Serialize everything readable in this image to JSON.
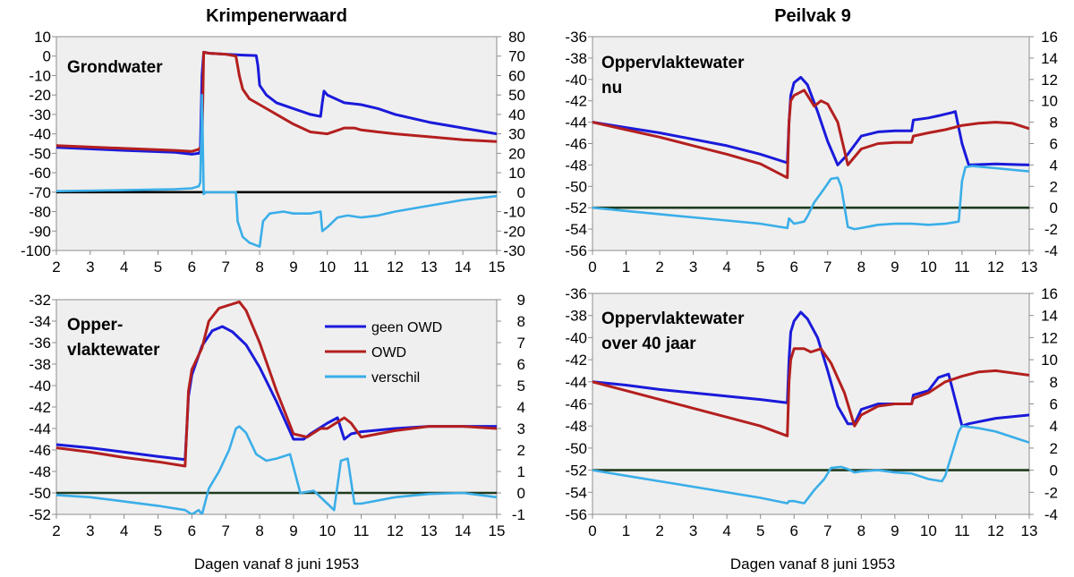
{
  "columns": [
    {
      "title": "Krimpenerwaard"
    },
    {
      "title": "Peilvak 9"
    }
  ],
  "xlabel": "Dagen vanaf 8 juni 1953",
  "legend": [
    "geen OWD",
    "OWD",
    "verschil"
  ],
  "colors": {
    "geen_owd": "#1a1adb",
    "owd": "#b41f1f",
    "verschil": "#3aaee8",
    "zero_line_dark": "#000000",
    "zero_line_green": "#1f3b1f",
    "plot_bg": "#efefef"
  },
  "chart_data": [
    {
      "type": "line",
      "label": "Grondwater",
      "xlim": [
        2,
        15
      ],
      "xticks": [
        2,
        3,
        4,
        5,
        6,
        7,
        8,
        9,
        10,
        11,
        12,
        13,
        14,
        15
      ],
      "ylim": [
        -100,
        10
      ],
      "yticks": [
        -100,
        -90,
        -80,
        -70,
        -60,
        -50,
        -40,
        -30,
        -20,
        -10,
        0,
        10
      ],
      "y2lim": [
        -30,
        80
      ],
      "y2ticks": [
        -30,
        -20,
        -10,
        0,
        10,
        20,
        30,
        40,
        50,
        60,
        70,
        80
      ],
      "grid": false,
      "zero_line_y2": 0,
      "zero_color": "zero_line_dark",
      "series": [
        {
          "name": "geen OWD",
          "axis": "left",
          "x": [
            2,
            4,
            5.5,
            6.0,
            6.2,
            6.25,
            6.3,
            6.35,
            6.5,
            7,
            7.5,
            7.9,
            7.95,
            8.0,
            8.2,
            8.5,
            9,
            9.5,
            9.8,
            9.85,
            9.9,
            10,
            10.5,
            11,
            11.5,
            12,
            13,
            14,
            15
          ],
          "y": [
            -47,
            -48.5,
            -49.5,
            -50.5,
            -50,
            -49,
            -10,
            2,
            1.5,
            1,
            0.5,
            0.3,
            -5,
            -15,
            -20,
            -24,
            -27,
            -30,
            -31,
            -24,
            -18,
            -20,
            -24,
            -25,
            -27,
            -30,
            -34,
            -37,
            -40
          ]
        },
        {
          "name": "OWD",
          "axis": "left",
          "x": [
            2,
            4,
            5.5,
            6.0,
            6.2,
            6.3,
            6.35,
            6.5,
            7.0,
            7.3,
            7.4,
            7.5,
            7.7,
            8,
            8.5,
            9,
            9.5,
            10,
            10.5,
            10.8,
            11,
            11.5,
            12,
            13,
            14,
            15
          ],
          "y": [
            -46,
            -47.5,
            -48.5,
            -49,
            -48,
            -46,
            2,
            1.5,
            1,
            0,
            -10,
            -17,
            -22,
            -25,
            -30,
            -35,
            -39,
            -40,
            -37,
            -37,
            -38,
            -39,
            -40,
            -41.5,
            -43,
            -44
          ]
        },
        {
          "name": "verschil",
          "axis": "right",
          "x": [
            2,
            4,
            5.5,
            6.0,
            6.2,
            6.25,
            6.3,
            6.35,
            6.4,
            7,
            7.3,
            7.35,
            7.5,
            7.7,
            8.0,
            8.1,
            8.3,
            8.7,
            9,
            9.5,
            9.8,
            9.85,
            10,
            10.3,
            10.6,
            11,
            11.5,
            12,
            13,
            14,
            15
          ],
          "y": [
            0.5,
            1,
            1.5,
            2,
            3,
            5,
            50,
            -1,
            0,
            0,
            0,
            -15,
            -23,
            -26,
            -28,
            -15,
            -11,
            -10,
            -11,
            -11,
            -10,
            -20,
            -18,
            -13,
            -12,
            -13,
            -12,
            -10,
            -7,
            -4,
            -2
          ]
        }
      ]
    },
    {
      "type": "line",
      "label": "Oppervlaktewater nu",
      "xlim": [
        0,
        13
      ],
      "xticks": [
        0,
        1,
        2,
        3,
        4,
        5,
        6,
        7,
        8,
        9,
        10,
        11,
        12,
        13
      ],
      "ylim": [
        -56,
        -36
      ],
      "yticks": [
        -56,
        -54,
        -52,
        -50,
        -48,
        -46,
        -44,
        -42,
        -40,
        -38,
        -36
      ],
      "y2lim": [
        -4,
        16
      ],
      "y2ticks": [
        -4,
        -2,
        0,
        2,
        4,
        6,
        8,
        10,
        12,
        14,
        16
      ],
      "grid": false,
      "zero_line_y2": 0,
      "zero_color": "zero_line_green",
      "series": [
        {
          "name": "geen OWD",
          "axis": "left",
          "x": [
            0,
            1,
            2,
            3,
            4,
            5,
            5.8,
            5.85,
            5.9,
            6.0,
            6.2,
            6.4,
            6.7,
            7.0,
            7.3,
            7.6,
            8,
            8.5,
            9,
            9.5,
            9.55,
            10,
            10.3,
            10.7,
            10.8,
            11.0,
            11.2,
            12,
            13
          ],
          "y": [
            -44,
            -44.5,
            -45,
            -45.6,
            -46.2,
            -47,
            -47.8,
            -44,
            -41.5,
            -40.3,
            -39.8,
            -40.5,
            -43,
            -45.8,
            -48,
            -47,
            -45.3,
            -44.9,
            -44.8,
            -44.8,
            -43.8,
            -43.6,
            -43.4,
            -43.1,
            -43,
            -46,
            -48,
            -47.9,
            -48
          ]
        },
        {
          "name": "OWD",
          "axis": "left",
          "x": [
            0,
            1,
            2,
            3,
            4,
            5,
            5.8,
            5.85,
            5.9,
            6.0,
            6.3,
            6.6,
            6.8,
            7.0,
            7.3,
            7.6,
            8,
            8.5,
            9,
            9.5,
            9.55,
            10,
            10.5,
            11,
            11.5,
            12,
            12.5,
            13
          ],
          "y": [
            -44,
            -44.7,
            -45.4,
            -46.2,
            -47,
            -47.9,
            -49.2,
            -44,
            -42,
            -41.5,
            -41,
            -42.5,
            -42,
            -42.3,
            -44,
            -48,
            -46.5,
            -46,
            -45.9,
            -45.9,
            -45.3,
            -45,
            -44.7,
            -44.3,
            -44.1,
            -44,
            -44.1,
            -44.6
          ]
        },
        {
          "name": "verschil",
          "axis": "right",
          "x": [
            0,
            1,
            2,
            3,
            4,
            5,
            5.8,
            5.85,
            6.0,
            6.3,
            6.4,
            6.6,
            6.9,
            7.1,
            7.3,
            7.4,
            7.6,
            7.8,
            8,
            8.5,
            9,
            9.5,
            10,
            10.5,
            10.9,
            11.0,
            11.1,
            11.3,
            12,
            13
          ],
          "y": [
            0,
            -0.3,
            -0.6,
            -0.9,
            -1.2,
            -1.5,
            -1.9,
            -1,
            -1.5,
            -1.3,
            -0.8,
            0.5,
            1.8,
            2.7,
            2.8,
            2,
            -1.8,
            -2,
            -1.9,
            -1.6,
            -1.5,
            -1.5,
            -1.6,
            -1.5,
            -1.3,
            2.5,
            3.8,
            3.9,
            3.7,
            3.4
          ]
        }
      ]
    },
    {
      "type": "line",
      "label": "Opper- vlaktewater",
      "xlim": [
        2,
        15
      ],
      "xticks": [
        2,
        3,
        4,
        5,
        6,
        7,
        8,
        9,
        10,
        11,
        12,
        13,
        14,
        15
      ],
      "ylim": [
        -52,
        -32
      ],
      "yticks": [
        -52,
        -50,
        -48,
        -46,
        -44,
        -42,
        -40,
        -38,
        -36,
        -34,
        -32
      ],
      "y2lim": [
        -1,
        9
      ],
      "y2ticks": [
        -1,
        0,
        1,
        2,
        3,
        4,
        5,
        6,
        7,
        8,
        9
      ],
      "grid": false,
      "zero_line_y2": 0,
      "zero_color": "zero_line_green",
      "series": [
        {
          "name": "geen OWD",
          "axis": "left",
          "x": [
            2,
            3,
            4,
            5,
            5.8,
            5.85,
            5.9,
            6.0,
            6.3,
            6.6,
            6.9,
            7.2,
            7.6,
            8,
            8.5,
            9,
            9.3,
            9.5,
            10,
            10.3,
            10.5,
            10.7,
            11,
            12,
            13,
            14,
            15
          ],
          "y": [
            -45.5,
            -45.8,
            -46.2,
            -46.6,
            -46.9,
            -44,
            -41,
            -39,
            -36.3,
            -34.9,
            -34.5,
            -35,
            -36.2,
            -38.3,
            -41.5,
            -45,
            -45,
            -44.5,
            -43.5,
            -43,
            -45,
            -44.5,
            -44.3,
            -44,
            -43.8,
            -43.8,
            -43.8
          ]
        },
        {
          "name": "OWD",
          "axis": "left",
          "x": [
            2,
            3,
            4,
            5,
            5.8,
            5.85,
            5.9,
            6.0,
            6.3,
            6.5,
            6.8,
            7.1,
            7.4,
            7.6,
            8,
            8.5,
            9,
            9.4,
            9.8,
            10,
            10.5,
            10.7,
            11,
            12,
            13,
            14,
            15
          ],
          "y": [
            -45.8,
            -46.2,
            -46.7,
            -47.1,
            -47.5,
            -44,
            -40.5,
            -38.5,
            -36.5,
            -34,
            -32.8,
            -32.5,
            -32.2,
            -33,
            -36,
            -40.5,
            -44.5,
            -44.8,
            -44,
            -44,
            -43,
            -43.5,
            -44.8,
            -44.2,
            -43.8,
            -43.8,
            -44
          ]
        },
        {
          "name": "verschil",
          "axis": "right",
          "x": [
            2,
            3,
            4,
            5,
            5.8,
            6.0,
            6.2,
            6.3,
            6.5,
            6.8,
            7.1,
            7.3,
            7.4,
            7.6,
            7.9,
            8.2,
            8.5,
            8.9,
            9.2,
            9.6,
            10,
            10.2,
            10.4,
            10.6,
            10.8,
            11,
            12,
            13,
            14,
            15
          ],
          "y": [
            -0.1,
            -0.2,
            -0.4,
            -0.6,
            -0.8,
            -1,
            -0.8,
            -1,
            0.2,
            1,
            2,
            3,
            3.1,
            2.8,
            1.8,
            1.5,
            1.6,
            1.8,
            0,
            0.1,
            -0.5,
            -0.8,
            1.5,
            1.6,
            -0.5,
            -0.5,
            -0.2,
            -0.05,
            0,
            -0.2
          ]
        }
      ]
    },
    {
      "type": "line",
      "label": "Oppervlaktewater over 40 jaar",
      "xlim": [
        0,
        13
      ],
      "xticks": [
        0,
        1,
        2,
        3,
        4,
        5,
        6,
        7,
        8,
        9,
        10,
        11,
        12,
        13
      ],
      "ylim": [
        -56,
        -36
      ],
      "yticks": [
        -56,
        -54,
        -52,
        -50,
        -48,
        -46,
        -44,
        -42,
        -40,
        -38,
        -36
      ],
      "y2lim": [
        -4,
        16
      ],
      "y2ticks": [
        -4,
        -2,
        0,
        2,
        4,
        6,
        8,
        10,
        12,
        14,
        16
      ],
      "grid": false,
      "zero_line_y2": 0,
      "zero_color": "zero_line_green",
      "series": [
        {
          "name": "geen OWD",
          "axis": "left",
          "x": [
            0,
            1,
            2,
            3,
            4,
            5,
            5.8,
            5.85,
            5.9,
            6.0,
            6.2,
            6.4,
            6.7,
            7.0,
            7.3,
            7.6,
            7.8,
            8,
            8.5,
            9,
            9.5,
            9.55,
            10,
            10.3,
            10.6,
            11.0,
            11.2,
            12,
            13
          ],
          "y": [
            -44,
            -44.3,
            -44.7,
            -45,
            -45.3,
            -45.6,
            -45.9,
            -42,
            -39.5,
            -38.5,
            -37.7,
            -38.3,
            -40,
            -43,
            -46.2,
            -47.8,
            -47.8,
            -46.5,
            -46,
            -46,
            -46,
            -45.2,
            -44.8,
            -43.6,
            -43.3,
            -48,
            -47.8,
            -47.3,
            -47
          ]
        },
        {
          "name": "OWD",
          "axis": "left",
          "x": [
            0,
            1,
            2,
            3,
            4,
            5,
            5.8,
            5.85,
            5.9,
            6.0,
            6.3,
            6.5,
            6.8,
            7.1,
            7.5,
            7.8,
            8,
            8.5,
            9,
            9.5,
            9.55,
            10,
            10.5,
            11,
            11.5,
            12,
            13
          ],
          "y": [
            -44,
            -44.8,
            -45.6,
            -46.4,
            -47.2,
            -48,
            -48.9,
            -44,
            -42,
            -41,
            -41,
            -41.3,
            -41,
            -42.3,
            -45,
            -48,
            -47,
            -46.2,
            -46,
            -46,
            -45.5,
            -45,
            -44,
            -43.5,
            -43.1,
            -43,
            -43.4
          ]
        },
        {
          "name": "verschil",
          "axis": "right",
          "x": [
            0,
            1,
            2,
            3,
            4,
            5,
            5.8,
            5.85,
            6.0,
            6.3,
            6.6,
            6.9,
            7.1,
            7.4,
            7.6,
            7.8,
            8,
            8.5,
            9,
            9.5,
            10,
            10.4,
            10.5,
            10.9,
            11.0,
            11.5,
            12,
            13
          ],
          "y": [
            0,
            -0.5,
            -1,
            -1.5,
            -2,
            -2.5,
            -3,
            -2.8,
            -2.8,
            -3,
            -1.8,
            -0.8,
            0.2,
            0.3,
            0.1,
            -0.2,
            -0.1,
            0,
            -0.2,
            -0.3,
            -0.8,
            -1,
            -0.5,
            3.5,
            4,
            3.8,
            3.5,
            2.5
          ]
        }
      ]
    }
  ]
}
